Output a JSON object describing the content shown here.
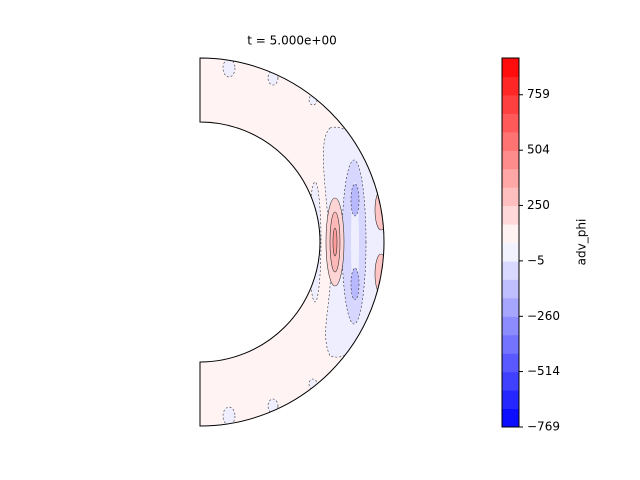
{
  "chart_data": {
    "type": "contour",
    "title": "t = 5.000e+00",
    "colorbar_label": "adv_phi",
    "colormap": "bwr",
    "levels": [
      -769,
      -684,
      -599,
      -515,
      -430,
      -345,
      -260,
      -175,
      -90,
      -6,
      79,
      164,
      249,
      334,
      419,
      503,
      588,
      673,
      758,
      843,
      928
    ],
    "cticks": [
      {
        "value": -769,
        "label": "−769"
      },
      {
        "value": -514,
        "label": "−514"
      },
      {
        "value": -260,
        "label": "−260"
      },
      {
        "value": -5,
        "label": "−5"
      },
      250,
      504,
      759
    ]
  }
}
